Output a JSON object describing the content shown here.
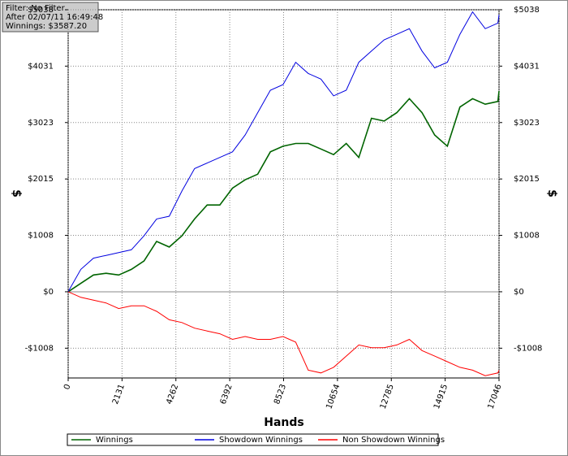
{
  "chart_data": {
    "type": "line",
    "annotations": [
      "Filter: No Filter",
      "After 02/07/11 16:49:48",
      "Winnings: $3587.20"
    ],
    "xlabel": "Hands",
    "ylabel": "$",
    "x": [
      0,
      500,
      1000,
      1500,
      2000,
      2500,
      3000,
      3500,
      4000,
      4500,
      5000,
      5500,
      6000,
      6500,
      7000,
      7500,
      8000,
      8500,
      9000,
      9500,
      10000,
      10500,
      11000,
      11500,
      12000,
      12500,
      13000,
      13500,
      14000,
      14500,
      15000,
      15500,
      16000,
      16500,
      17000,
      17046
    ],
    "series": [
      {
        "name": "Winnings",
        "color": "#006400",
        "values": [
          0,
          150,
          300,
          330,
          300,
          400,
          550,
          900,
          800,
          1000,
          1300,
          1550,
          1550,
          1850,
          2000,
          2100,
          2500,
          2600,
          2650,
          2650,
          2550,
          2450,
          2650,
          2400,
          3100,
          3050,
          3200,
          3450,
          3200,
          2800,
          2600,
          3300,
          3450,
          3350,
          3400,
          3587
        ]
      },
      {
        "name": "Showdown Winnings",
        "color": "#0000e0",
        "values": [
          0,
          400,
          600,
          650,
          700,
          750,
          1000,
          1300,
          1350,
          1800,
          2200,
          2300,
          2400,
          2500,
          2800,
          3200,
          3600,
          3700,
          4100,
          3900,
          3800,
          3500,
          3600,
          4100,
          4300,
          4500,
          4600,
          4700,
          4300,
          4000,
          4100,
          4600,
          5000,
          4700,
          4800,
          4950
        ]
      },
      {
        "name": "Non Showdown Winnings",
        "color": "#ff0000",
        "values": [
          0,
          -100,
          -150,
          -200,
          -300,
          -250,
          -250,
          -350,
          -500,
          -550,
          -650,
          -700,
          -750,
          -850,
          -800,
          -850,
          -850,
          -800,
          -900,
          -1400,
          -1450,
          -1350,
          -1150,
          -950,
          -1000,
          -1000,
          -950,
          -850,
          -1050,
          -1150,
          -1250,
          -1350,
          -1400,
          -1500,
          -1450,
          -1400
        ]
      }
    ],
    "xlim": [
      0,
      17046
    ],
    "xticks": [
      0,
      2131,
      4262,
      6392,
      8523,
      10654,
      12785,
      14915,
      17046
    ],
    "ylim": [
      -1540,
      5038
    ],
    "yticks": [
      {
        "value": -1008,
        "label": "-$1008"
      },
      {
        "value": 0,
        "label": "$0"
      },
      {
        "value": 1008,
        "label": "$1008"
      },
      {
        "value": 2015,
        "label": "$2015"
      },
      {
        "value": 3023,
        "label": "$3023"
      },
      {
        "value": 4031,
        "label": "$4031"
      },
      {
        "value": 5038,
        "label": "$5038"
      }
    ],
    "grid": true
  }
}
